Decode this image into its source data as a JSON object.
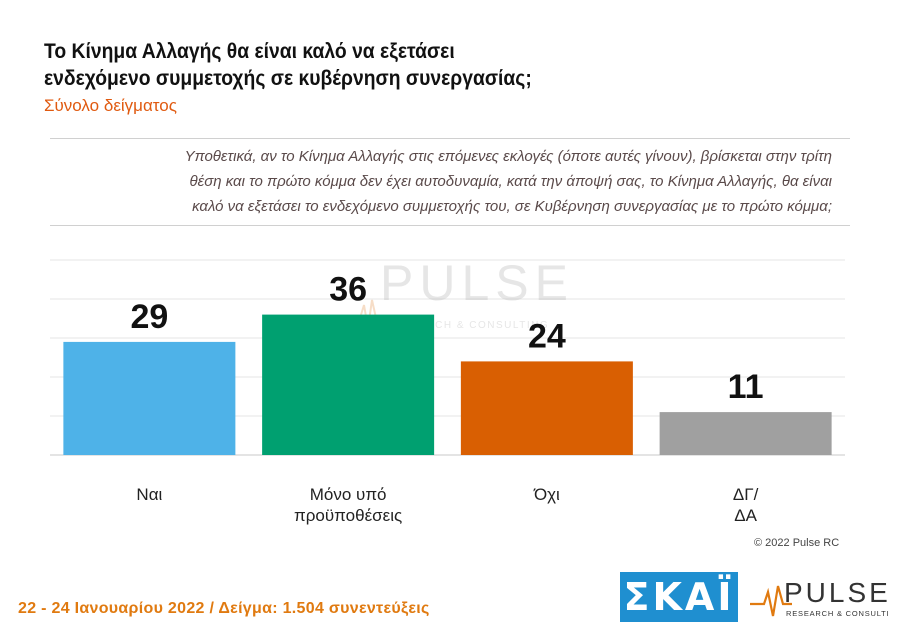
{
  "header": {
    "title_line1": "Το Κίνημα Αλλαγής θα είναι καλό να εξετάσει",
    "title_line2": "ενδεχόμενο συμμετοχής σε κυβέρνηση συνεργασίας;",
    "subtitle": "Σύνολο δείγματος"
  },
  "question": {
    "line1": "Υποθετικά, αν το Κίνημα Αλλαγής στις επόμενες εκλογές (όποτε αυτές γίνουν), βρίσκεται στην τρίτη",
    "line2": "θέση και το πρώτο κόμμα δεν έχει αυτοδυναμία, κατά την άποψή σας, το Κίνημα Αλλαγής, θα είναι",
    "line3": "καλό να εξετάσει το ενδεχόμενο συμμετοχής του, σε Κυβέρνηση συνεργασίας με το πρώτο κόμμα;"
  },
  "chart_data": {
    "type": "bar",
    "categories": [
      [
        "Ναι"
      ],
      [
        "Μόνο υπό",
        "προϋποθέσεις"
      ],
      [
        "Όχι"
      ],
      [
        "ΔΓ/",
        "ΔΑ"
      ]
    ],
    "values": [
      29,
      36,
      24,
      11
    ],
    "colors": [
      "#4eb2e8",
      "#00a070",
      "#d95f02",
      "#a0a0a0"
    ],
    "ylim": [
      0,
      50
    ],
    "grid": true,
    "xlabel": "",
    "ylabel": ""
  },
  "watermark": {
    "brand": "PULSE",
    "tagline": "RESEARCH & CONSULTING"
  },
  "copyright": "© 2022 Pulse RC",
  "footer": "22 - 24 Ιανουαρίου 2022 / Δείγμα: 1.504 συνεντεύξεις",
  "logos": {
    "skai": "ΣΚΑΪ",
    "pulse": "PULSE",
    "pulse_tagline": "RESEARCH & CONSULTING"
  }
}
